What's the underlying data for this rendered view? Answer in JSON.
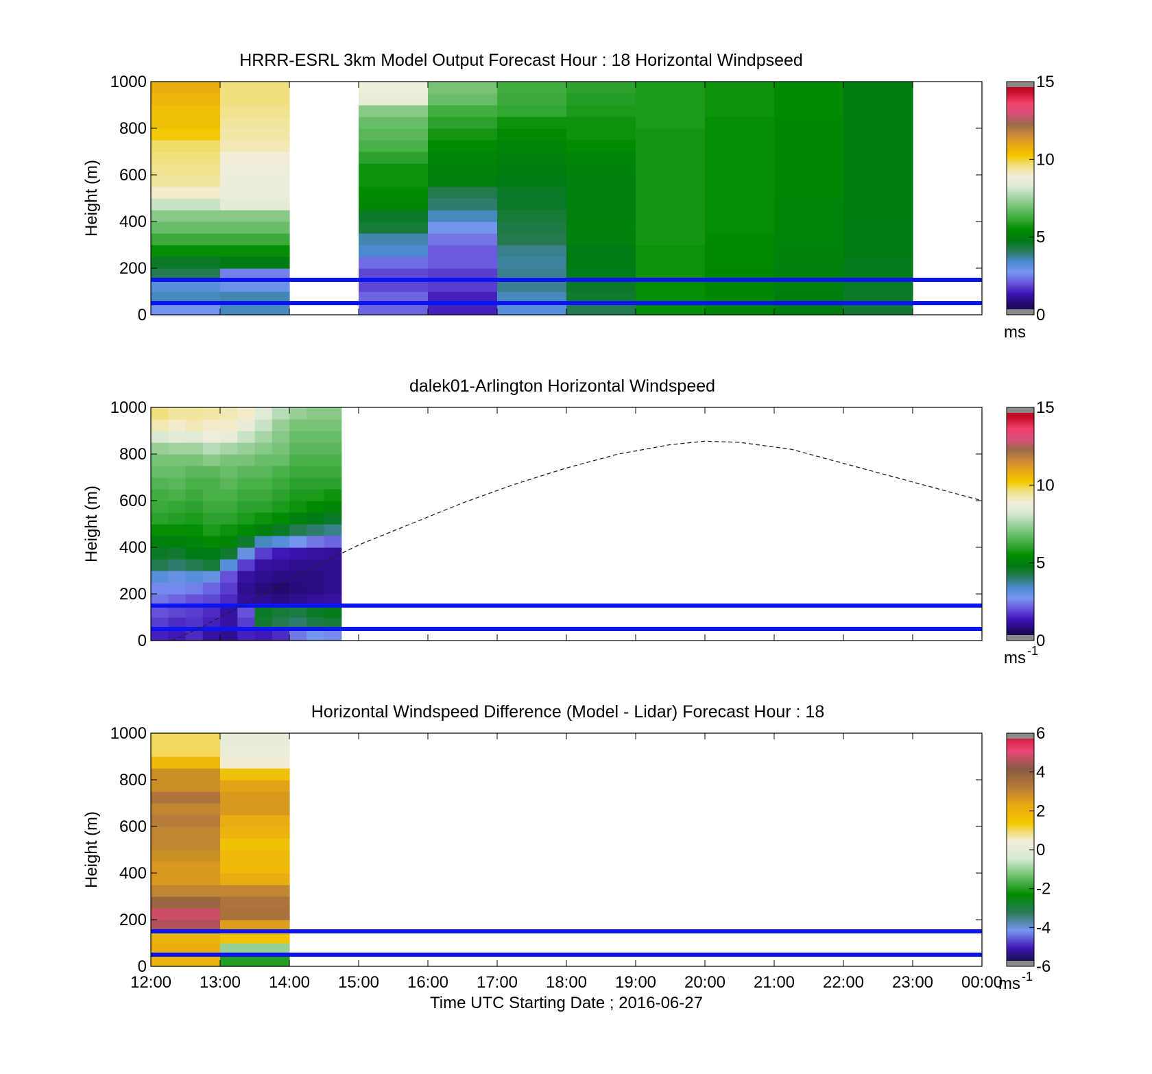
{
  "figure": {
    "xlabel": "Time UTC  Starting Date ; 2016-06-27",
    "xticks": [
      "12:00",
      "13:00",
      "14:00",
      "15:00",
      "16:00",
      "17:00",
      "18:00",
      "19:00",
      "20:00",
      "21:00",
      "22:00",
      "23:00",
      "00:00"
    ]
  },
  "colors": {
    "ref_lines": "#0a14f0",
    "colormap_speed": [
      "#0d0d28",
      "#220a6e",
      "#3c14b4",
      "#6a55dc",
      "#7896f0",
      "#4a8ad0",
      "#2a7a5a",
      "#007a14",
      "#008c00",
      "#36a836",
      "#6abe6a",
      "#a0d2a0",
      "#d7e9d4",
      "#f2eedc",
      "#f0e28a",
      "#f2c800",
      "#e8a814",
      "#c88a3a",
      "#9a6a4a",
      "#d8507a",
      "#f0406a",
      "#c8102c",
      "#b00018"
    ],
    "colormap_diff": [
      "#0d0d28",
      "#3c14b4",
      "#7896f0",
      "#2a7a5a",
      "#008c00",
      "#6abe6a",
      "#d7e9d4",
      "#f2eedc",
      "#f2c800",
      "#e8a814",
      "#b47a3a",
      "#8a5a44",
      "#e84878",
      "#c8102c"
    ]
  },
  "chart_data": [
    {
      "type": "heatmap",
      "title": "HRRR-ESRL 3km Model Output   Forecast Hour : 18 Horizontal Windpseed",
      "ylabel": "Height (m)",
      "ylim": [
        0,
        1000
      ],
      "yticks": [
        "0",
        "200",
        "400",
        "600",
        "800",
        "1000"
      ],
      "xlim": [
        "12:00",
        "00:00"
      ],
      "cbar_ticks": [
        "0",
        "5",
        "10",
        "15"
      ],
      "cbar_range": [
        0,
        15
      ],
      "cbar_unit": "ms",
      "cbar_exp": "",
      "cell_height_m": 50,
      "x_step_h": 1,
      "columns": [
        {
          "x": "12:00",
          "speeds": [
            2.8,
            3.5,
            3.2,
            4.2,
            4.6,
            5.5,
            6.2,
            6.8,
            7.2,
            8.0,
            9.0,
            9.4,
            9.5,
            9.6,
            9.7,
            10.2,
            10.4,
            10.4,
            10.6,
            10.8
          ]
        },
        {
          "x": "13:00",
          "speeds": [
            3.5,
            3.6,
            2.9,
            2.5,
            4.8,
            5.5,
            6.2,
            6.8,
            7.2,
            8.5,
            8.7,
            8.7,
            8.8,
            8.9,
            9.2,
            9.3,
            9.4,
            9.5,
            9.6,
            9.6
          ]
        },
        {
          "x": "14:00",
          "speeds": null
        },
        {
          "x": "15:00",
          "speeds": [
            2.2,
            2.2,
            1.9,
            1.9,
            2.3,
            3.4,
            3.6,
            4.4,
            4.6,
            5.3,
            5.4,
            5.6,
            5.6,
            6.0,
            6.4,
            6.6,
            6.8,
            7.2,
            8.6,
            8.8
          ]
        },
        {
          "x": "16:00",
          "speeds": [
            1.5,
            1.5,
            1.8,
            1.8,
            2.1,
            2.1,
            2.4,
            2.8,
            3.5,
            4.0,
            4.2,
            5.0,
            5.1,
            5.2,
            5.4,
            5.7,
            6.0,
            6.3,
            6.8,
            7.0
          ]
        },
        {
          "x": "17:00",
          "speeds": [
            3.2,
            3.5,
            3.8,
            3.8,
            3.7,
            3.8,
            4.2,
            4.3,
            4.4,
            4.6,
            4.6,
            4.8,
            4.9,
            5.0,
            5.2,
            5.4,
            5.6,
            6.1,
            6.2,
            6.3
          ]
        },
        {
          "x": "18:00",
          "speeds": [
            4.2,
            4.5,
            4.6,
            4.7,
            4.8,
            4.8,
            5.0,
            5.1,
            5.0,
            5.0,
            5.0,
            5.0,
            5.1,
            5.2,
            5.4,
            5.6,
            5.6,
            5.8,
            5.9,
            6.0
          ]
        },
        {
          "x": "19:00",
          "speeds": [
            5.5,
            5.5,
            5.5,
            5.6,
            5.6,
            5.6,
            5.7,
            5.7,
            5.7,
            5.7,
            5.7,
            5.7,
            5.7,
            5.7,
            5.7,
            5.7,
            5.8,
            5.8,
            5.8,
            5.8
          ]
        },
        {
          "x": "20:00",
          "speeds": [
            5.2,
            5.3,
            5.3,
            5.3,
            5.4,
            5.4,
            5.4,
            5.5,
            5.5,
            5.5,
            5.5,
            5.5,
            5.5,
            5.5,
            5.5,
            5.5,
            5.5,
            5.6,
            5.6,
            5.6
          ]
        },
        {
          "x": "21:00",
          "speeds": [
            4.9,
            4.9,
            5.0,
            5.0,
            5.1,
            5.1,
            5.2,
            5.2,
            5.2,
            5.2,
            5.3,
            5.3,
            5.3,
            5.3,
            5.3,
            5.3,
            5.3,
            5.4,
            5.4,
            5.4
          ]
        },
        {
          "x": "22:00",
          "speeds": [
            4.5,
            4.6,
            4.6,
            4.7,
            4.7,
            4.8,
            4.8,
            4.8,
            4.9,
            4.9,
            4.9,
            4.9,
            4.9,
            4.9,
            4.9,
            4.9,
            4.9,
            4.9,
            4.9,
            4.9
          ]
        },
        {
          "x": "23:00",
          "speeds": null
        }
      ],
      "ref_lines_m": [
        50,
        150
      ]
    },
    {
      "type": "heatmap",
      "title": "dalek01-Arlington  Horizontal Windspeed",
      "ylabel": "Height (m)",
      "ylim": [
        0,
        1000
      ],
      "yticks": [
        "0",
        "200",
        "400",
        "600",
        "800",
        "1000"
      ],
      "xlim": [
        "12:00",
        "00:00"
      ],
      "cbar_ticks": [
        "0",
        "5",
        "10",
        "15"
      ],
      "cbar_range": [
        0,
        15
      ],
      "cbar_unit": "ms",
      "cbar_exp": "-1",
      "cell_height_m": 50,
      "x_step_h": 0.25,
      "columns": [
        {
          "x": "12:00",
          "speeds": [
            1.5,
            1.8,
            2.0,
            2.4,
            2.6,
            3.2,
            4.2,
            4.6,
            5.0,
            5.5,
            6.0,
            6.2,
            6.3,
            6.5,
            6.8,
            7.0,
            7.4,
            8.2,
            9.2,
            9.6
          ]
        },
        {
          "x": "12:15",
          "speeds": [
            1.4,
            1.6,
            1.9,
            2.2,
            2.6,
            3.0,
            4.0,
            4.5,
            5.0,
            5.5,
            5.9,
            6.1,
            6.4,
            6.6,
            6.8,
            7.0,
            7.5,
            8.5,
            9.0,
            9.4
          ]
        },
        {
          "x": "12:30",
          "speeds": [
            1.6,
            1.7,
            1.8,
            2.0,
            2.5,
            3.2,
            4.2,
            4.8,
            5.2,
            5.5,
            5.8,
            6.0,
            6.2,
            6.4,
            6.6,
            7.0,
            7.5,
            8.4,
            9.2,
            9.4
          ]
        },
        {
          "x": "12:45",
          "speeds": [
            1.2,
            1.5,
            1.6,
            1.9,
            2.2,
            3.0,
            4.4,
            4.8,
            5.4,
            5.8,
            6.0,
            6.2,
            6.4,
            6.4,
            6.6,
            7.2,
            7.8,
            8.8,
            9.0,
            9.3
          ]
        },
        {
          "x": "13:00",
          "speeds": [
            1.0,
            1.2,
            1.2,
            1.6,
            1.8,
            2.0,
            3.2,
            4.5,
            5.2,
            5.6,
            6.0,
            6.2,
            6.4,
            6.6,
            6.8,
            7.0,
            7.6,
            8.6,
            9.0,
            9.2
          ]
        },
        {
          "x": "13:15",
          "speeds": [
            1.5,
            1.8,
            2.0,
            1.1,
            1.0,
            1.2,
            1.8,
            3.0,
            4.5,
            5.4,
            5.8,
            6.0,
            6.2,
            6.4,
            6.6,
            7.0,
            7.4,
            8.0,
            8.6,
            9.0
          ]
        },
        {
          "x": "13:30",
          "speeds": [
            1.4,
            4.5,
            4.6,
            1.0,
            0.8,
            1.0,
            1.2,
            1.8,
            3.5,
            5.0,
            5.6,
            6.0,
            6.2,
            6.4,
            6.6,
            6.8,
            7.2,
            7.6,
            8.0,
            8.4
          ]
        },
        {
          "x": "13:45",
          "speeds": [
            1.6,
            4.2,
            4.4,
            0.9,
            0.7,
            0.9,
            1.1,
            1.4,
            3.2,
            4.6,
            5.4,
            5.8,
            6.0,
            6.2,
            6.4,
            6.8,
            7.0,
            7.2,
            7.4,
            7.8
          ]
        },
        {
          "x": "14:00",
          "speeds": [
            2.4,
            4.0,
            4.3,
            1.0,
            0.8,
            0.9,
            1.0,
            1.3,
            2.8,
            4.2,
            5.0,
            5.6,
            5.8,
            6.0,
            6.2,
            6.4,
            6.6,
            6.8,
            7.0,
            7.4
          ]
        },
        {
          "x": "14:15",
          "speeds": [
            2.8,
            4.3,
            4.6,
            1.1,
            0.9,
            0.9,
            1.0,
            1.2,
            2.4,
            4.0,
            4.8,
            5.4,
            5.8,
            6.0,
            6.2,
            6.4,
            6.6,
            6.8,
            7.0,
            7.2
          ]
        },
        {
          "x": "14:30",
          "speeds": [
            2.6,
            4.4,
            4.7,
            1.2,
            1.0,
            1.0,
            1.0,
            1.1,
            2.2,
            3.8,
            4.6,
            5.2,
            5.6,
            6.0,
            6.2,
            6.4,
            6.6,
            6.8,
            7.0,
            7.2
          ]
        }
      ],
      "ref_lines_m": [
        50,
        150
      ],
      "dashed_curve": {
        "x_hours": [
          12.3,
          12.75,
          13.5,
          14.25,
          15.0,
          15.75,
          16.5,
          17.25,
          18.0,
          18.75,
          19.5,
          20.0,
          20.5,
          21.25,
          22.0,
          22.75,
          23.5,
          24.0
        ],
        "y_m": [
          0,
          60,
          180,
          300,
          410,
          500,
          590,
          670,
          740,
          800,
          840,
          855,
          850,
          820,
          760,
          700,
          640,
          600
        ]
      }
    },
    {
      "type": "heatmap",
      "title": "Horizontal Windspeed Difference (Model - Lidar) Forecast Hour : 18",
      "ylabel": "Height (m)",
      "ylim": [
        0,
        1000
      ],
      "yticks": [
        "0",
        "200",
        "400",
        "600",
        "800",
        "1000"
      ],
      "xlim": [
        "12:00",
        "00:00"
      ],
      "cbar_ticks": [
        "-6",
        "-4",
        "-2",
        "0",
        "2",
        "4",
        "6"
      ],
      "cbar_range": [
        -6,
        6
      ],
      "cbar_unit": "ms",
      "cbar_exp": "-1",
      "cell_height_m": 50,
      "x_step_h": 1,
      "columns": [
        {
          "x": "12:00",
          "diffs": [
            2.0,
            2.2,
            2.0,
            4.5,
            4.8,
            3.8,
            3.0,
            2.6,
            2.6,
            2.8,
            3.0,
            3.0,
            3.2,
            3.0,
            3.4,
            2.8,
            2.8,
            1.8,
            1.0,
            1.0
          ]
        },
        {
          "x": "13:00",
          "diffs": [
            -2.0,
            -1.0,
            1.5,
            2.5,
            3.5,
            3.4,
            3.0,
            2.2,
            1.8,
            1.8,
            1.6,
            2.0,
            2.2,
            2.6,
            2.6,
            2.4,
            1.6,
            0.5,
            0.2,
            0.1
          ]
        }
      ],
      "ref_lines_m": [
        50,
        150
      ]
    }
  ]
}
